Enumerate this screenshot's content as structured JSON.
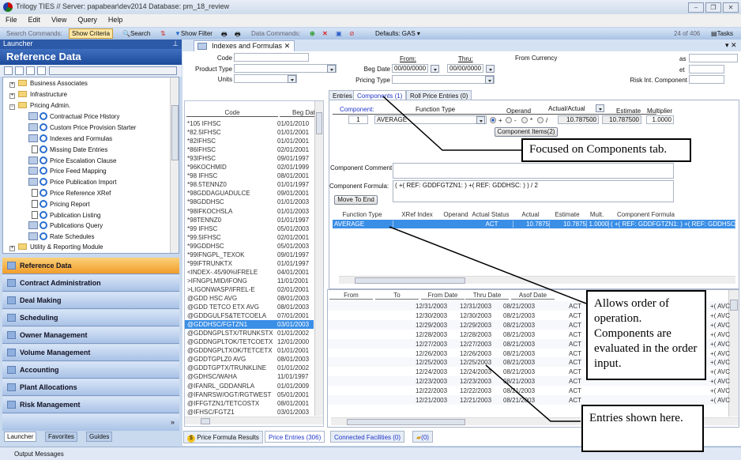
{
  "window": {
    "title": "Trilogy TIES // Server: papabear\\dev2014 Database: pm_18_review",
    "controls": [
      "minimize",
      "restore",
      "close"
    ]
  },
  "menu": [
    "File",
    "Edit",
    "View",
    "Query",
    "Help"
  ],
  "toolbar": {
    "search_commands": "Search Commands:",
    "show_criteria": "Show Criteria",
    "search": "Search",
    "show_filter": "Show Filter",
    "data_commands": "Data Commands:",
    "defaults": "Defaults: GAS",
    "record_count": "24 of 406",
    "tasks": "Tasks"
  },
  "launcher": {
    "title": "Launcher",
    "section": "Reference Data",
    "tree": [
      {
        "label": "Business Associates",
        "type": "folder",
        "expanded": false
      },
      {
        "label": "Infrastructure",
        "type": "folder",
        "expanded": false
      },
      {
        "label": "Pricing Admin.",
        "type": "folder",
        "expanded": true
      },
      {
        "label": "Contractual Price History",
        "type": "form"
      },
      {
        "label": "Custom Price Provision Starter",
        "type": "form"
      },
      {
        "label": "Indexes and  Formulas",
        "type": "form"
      },
      {
        "label": "Missing Date Entries",
        "type": "report"
      },
      {
        "label": "Price Escalation Clause",
        "type": "form"
      },
      {
        "label": "Price Feed Mapping",
        "type": "form"
      },
      {
        "label": "Price Publication Import",
        "type": "form"
      },
      {
        "label": "Price Reference XRef",
        "type": "report"
      },
      {
        "label": "Pricing Report",
        "type": "report"
      },
      {
        "label": "Publication Listing",
        "type": "report"
      },
      {
        "label": "Publications Query",
        "type": "form"
      },
      {
        "label": "Rate Schedules",
        "type": "form"
      },
      {
        "label": "Utility & Reporting Module",
        "type": "folder",
        "expanded": false
      }
    ],
    "nav": [
      {
        "label": "Reference Data",
        "selected": true
      },
      {
        "label": "Contract Administration"
      },
      {
        "label": "Deal Making"
      },
      {
        "label": "Scheduling"
      },
      {
        "label": "Owner Management"
      },
      {
        "label": "Volume Management"
      },
      {
        "label": "Accounting"
      },
      {
        "label": "Plant Allocations"
      },
      {
        "label": "Risk Management"
      }
    ],
    "tabs": [
      "Launcher",
      "Favorites",
      "Guides"
    ]
  },
  "output_messages": "Output Messages",
  "document": {
    "tab": "Indexes and  Formulas",
    "criteria": {
      "code_label": "Code",
      "product_type_label": "Product Type",
      "units_label": "Units",
      "from_label": "From:",
      "thru_label": "Thru:",
      "beg_date_label": "Beg Date",
      "beg_from": "00/00/0000",
      "beg_thru": "00/00/0000",
      "pricing_type_label": "Pricing Type",
      "from_currency_label": "From Currency",
      "alias_label": "as",
      "target_label": "et",
      "risk_label": "Risk Int. Component"
    },
    "code_grid": {
      "headers": [
        "Code",
        "Beg Date"
      ],
      "selected_index": 24,
      "rows": [
        [
          "*105 IFHSC",
          "01/01/2010"
        ],
        [
          "*82.5IFHSC",
          "01/01/2001"
        ],
        [
          "*82IFHSC",
          "01/01/2001"
        ],
        [
          "*86IFHSC",
          "02/01/2001"
        ],
        [
          "*93IFHSC",
          "09/01/1997"
        ],
        [
          "*96KOCHMID",
          "02/01/1999"
        ],
        [
          "*98 IFHSC",
          "08/01/2001"
        ],
        [
          "*98.5TENNZ0",
          "01/01/1997"
        ],
        [
          "*98GDDAGUADULCE",
          "09/01/2001"
        ],
        [
          "*98GDDHSC",
          "01/01/2003"
        ],
        [
          "*98IFKOCHSLA",
          "01/01/2003"
        ],
        [
          "*98TENNZ0",
          "01/01/1997"
        ],
        [
          "*99 IFHSC",
          "05/01/2003"
        ],
        [
          "*99.5IFHSC",
          "02/01/2001"
        ],
        [
          "*99GDDHSC",
          "05/01/2003"
        ],
        [
          "*99IFNGPL_TEXOK",
          "09/01/1997"
        ],
        [
          "*99IFTRUNKTX",
          "01/01/1997"
        ],
        [
          "<INDEX-.45/90%IFRELE",
          "04/01/2001"
        ],
        [
          ">IFNGPLMID/IFONG",
          "11/01/2001"
        ],
        [
          ">LIGONWASP/IFREL-E",
          "02/01/2001"
        ],
        [
          "@GDD HSC  AVG",
          "08/01/2003"
        ],
        [
          "@GDD TETCO ETX AVG",
          "08/01/2003"
        ],
        [
          "@GDDGULFS&TETCOELA",
          "07/01/2001"
        ],
        [
          "@GDDHSC/FGTZN1",
          "03/01/2003"
        ],
        [
          "@GDDNGPLSTX/TRUNKSTX",
          "01/01/2002"
        ],
        [
          "@GDDNGPLTOK/TETCOETX",
          "12/01/2000"
        ],
        [
          "@GDDNGPLTXOK/TETCETX",
          "01/01/2001"
        ],
        [
          "@GDDTGPLZ0 AVG",
          "08/01/2003"
        ],
        [
          "@GDDTGPTX/TRUNKLINE",
          "01/01/2002"
        ],
        [
          "@GDHSC/WAHA",
          "11/01/1997"
        ],
        [
          "@IFANRL_GDDANRLA",
          "01/01/2009"
        ],
        [
          "@IFANRSW/OGT/RGTWEST",
          "05/01/2001"
        ],
        [
          "@IFFGTZN1/TETCOSTX",
          "08/01/2001"
        ],
        [
          "@IFHSC/FGTZ1",
          "03/01/2003"
        ]
      ]
    },
    "subtabs": [
      "Entries",
      "Components (1)",
      "Roll Price Entries (0)"
    ],
    "components": {
      "component_label": "Component:",
      "function_type_label": "Function Type",
      "operand_label": "Operand",
      "actual_select": "Actual/Actual",
      "estimate_label": "Estimate",
      "multiplier_label": "Multiplier",
      "number": "1",
      "function_type": "AVERAGE",
      "operands": [
        "+",
        "-",
        "*",
        "/"
      ],
      "operand_selected": "+",
      "actual": "10.787500",
      "estimate": "10.787500",
      "multiplier": "1.0000",
      "items_button": "Component Items(2)",
      "comment_label": "Component Comment",
      "comment": "",
      "formula_label": "Component Formula:",
      "formula": "( +( REF: GDDFGTZN1: ) +( REF: GDDHSC: )  ) / 2",
      "move_to_end": "Move To End",
      "list_headers": [
        "Function Type",
        "XRef Index",
        "Operand",
        "Actual Status",
        "Actual",
        "Estimate",
        "Mult.",
        "Component Formula"
      ],
      "list_rows": [
        [
          "AVERAGE",
          "",
          "",
          "ACT",
          "10.7875",
          "10.7875",
          "1.0000",
          "( +( REF: GDDFGTZN1: ) +( REF: GDDHSC: )"
        ]
      ]
    },
    "entries": {
      "headers": [
        "From",
        "To",
        "From Date",
        "Thru Date",
        "Asof Date"
      ],
      "rows": [
        [
          "12/31/2003",
          "12/31/2003",
          "08/21/2003",
          "ACT",
          "+( AVC"
        ],
        [
          "12/30/2003",
          "12/30/2003",
          "08/21/2003",
          "ACT",
          "+( AVC"
        ],
        [
          "12/29/2003",
          "12/29/2003",
          "08/21/2003",
          "ACT",
          "+( AVC"
        ],
        [
          "12/28/2003",
          "12/28/2003",
          "08/21/2003",
          "ACT",
          "+( AVC"
        ],
        [
          "12/27/2003",
          "12/27/2003",
          "08/21/2003",
          "ACT",
          "+( AVC"
        ],
        [
          "12/26/2003",
          "12/26/2003",
          "08/21/2003",
          "ACT",
          "+( AVC"
        ],
        [
          "12/25/2003",
          "12/25/2003",
          "08/21/2003",
          "ACT",
          "+( AVC"
        ],
        [
          "12/24/2003",
          "12/24/2003",
          "08/21/2003",
          "ACT",
          "+( AVC"
        ],
        [
          "12/23/2003",
          "12/23/2003",
          "08/21/2003",
          "ACT",
          "+( AVC"
        ],
        [
          "12/22/2003",
          "12/22/2003",
          "08/21/2003",
          "ACT",
          "+( AVC"
        ],
        [
          "12/21/2003",
          "12/21/2003",
          "08/21/2003",
          "ACT",
          "+( AVC"
        ]
      ]
    },
    "bottom_tabs_left": [
      "Price Formula Results",
      "Price Entries (306)"
    ],
    "bottom_tabs_right": [
      "Connected Facilities (0)",
      "(0)"
    ]
  },
  "callouts": [
    "Focused on Components tab.",
    "Allows order of operation.  Components are evaluated in the order input.",
    "Entries shown here."
  ]
}
